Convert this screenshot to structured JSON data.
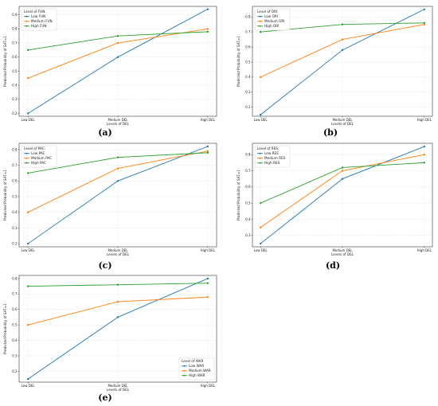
{
  "colors": {
    "low": "#1f77b4",
    "medium": "#ff7f0e",
    "high": "#2ca02c"
  },
  "chart_data": [
    {
      "type": "line",
      "panel": "a",
      "caption": "(a)",
      "xlabel": "Levels of DEL",
      "ylabel": "Predicted Probability of SAT=1",
      "categories": [
        "Low DEL",
        "Medium DEL",
        "High DEL"
      ],
      "ylim": [
        0.18,
        0.96
      ],
      "yticks": [
        0.2,
        0.3,
        0.4,
        0.5,
        0.6,
        0.7,
        0.8,
        0.9
      ],
      "grid": true,
      "legend_title": "Level of FUN:",
      "legend_position": "upper-left",
      "series": [
        {
          "name": "Low FUN",
          "values": [
            0.2,
            0.6,
            0.94
          ]
        },
        {
          "name": "Medium FUN",
          "values": [
            0.45,
            0.7,
            0.8
          ]
        },
        {
          "name": "High FUN",
          "values": [
            0.65,
            0.75,
            0.78
          ]
        }
      ]
    },
    {
      "type": "line",
      "panel": "b",
      "caption": "(b)",
      "xlabel": "Levels of DEL",
      "ylabel": "Predicted Probability of SAT=1",
      "categories": [
        "Low DEL",
        "Medium DEL",
        "High DEL"
      ],
      "ylim": [
        0.14,
        0.87
      ],
      "yticks": [
        0.2,
        0.3,
        0.4,
        0.5,
        0.6,
        0.7,
        0.8
      ],
      "grid": true,
      "legend_title": "Level of ORI:",
      "legend_position": "upper-left",
      "series": [
        {
          "name": "Low ORI",
          "values": [
            0.15,
            0.58,
            0.85
          ]
        },
        {
          "name": "Medium ORI",
          "values": [
            0.4,
            0.65,
            0.75
          ]
        },
        {
          "name": "High ORI",
          "values": [
            0.7,
            0.75,
            0.76
          ]
        }
      ]
    },
    {
      "type": "line",
      "panel": "c",
      "caption": "(c)",
      "xlabel": "Levels of DEL",
      "ylabel": "Predicted Probability of SAT=1",
      "categories": [
        "Low DEL",
        "Medium DEL",
        "High DEL"
      ],
      "ylim": [
        0.18,
        0.84
      ],
      "yticks": [
        0.2,
        0.3,
        0.4,
        0.5,
        0.6,
        0.7,
        0.8
      ],
      "grid": true,
      "legend_title": "Level of PAC:",
      "legend_position": "upper-left",
      "series": [
        {
          "name": "Low PAC",
          "values": [
            0.2,
            0.6,
            0.82
          ]
        },
        {
          "name": "Medium PAC",
          "values": [
            0.4,
            0.68,
            0.79
          ]
        },
        {
          "name": "High PAC",
          "values": [
            0.65,
            0.75,
            0.78
          ]
        }
      ]
    },
    {
      "type": "line",
      "panel": "d",
      "caption": "(d)",
      "xlabel": "Levels of DEL",
      "ylabel": "Predicted Probability of SAT=1",
      "categories": [
        "Low DEL",
        "Medium DEL",
        "High DEL"
      ],
      "ylim": [
        0.23,
        0.87
      ],
      "yticks": [
        0.3,
        0.4,
        0.5,
        0.6,
        0.7,
        0.8
      ],
      "grid": true,
      "legend_title": "Level of RES:",
      "legend_position": "upper-left",
      "series": [
        {
          "name": "Low RES",
          "values": [
            0.25,
            0.65,
            0.85
          ]
        },
        {
          "name": "Medium RES",
          "values": [
            0.35,
            0.7,
            0.8
          ]
        },
        {
          "name": "High RES",
          "values": [
            0.5,
            0.72,
            0.75
          ]
        }
      ]
    },
    {
      "type": "line",
      "panel": "e",
      "caption": "(e)",
      "xlabel": "Levels of DEL",
      "ylabel": "Predicted Probability of SAT=1",
      "categories": [
        "Low DEL",
        "Medium DEL",
        "High DEL"
      ],
      "ylim": [
        0.13,
        0.82
      ],
      "yticks": [
        0.2,
        0.3,
        0.4,
        0.5,
        0.6,
        0.7,
        0.8
      ],
      "grid": true,
      "legend_title": "Level of WAR",
      "legend_position": "lower-right",
      "series": [
        {
          "name": "Low WAR",
          "values": [
            0.15,
            0.55,
            0.8
          ]
        },
        {
          "name": "Medium WAR",
          "values": [
            0.5,
            0.65,
            0.68
          ]
        },
        {
          "name": "High WAR",
          "values": [
            0.75,
            0.76,
            0.77
          ]
        }
      ]
    }
  ]
}
